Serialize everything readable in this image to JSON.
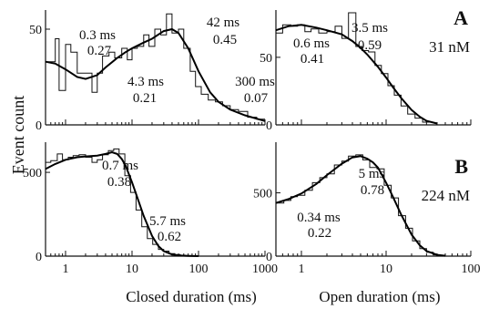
{
  "ylabel": "Event count",
  "chart_data": [
    {
      "type": "histogram",
      "panel_row": "A",
      "panel_label": "A",
      "concentration": "31 nM",
      "xscale": "log",
      "xlim": [
        0.5,
        1000
      ],
      "ylim": [
        0,
        60
      ],
      "x_ticks": [
        1,
        10,
        100,
        1000
      ],
      "x_tick_labels": [],
      "y_ticks": [
        0,
        50
      ],
      "y_tick_labels": [
        "0",
        "50"
      ],
      "xlabel": "",
      "histogram": {
        "x": [
          0.5,
          0.6,
          0.7,
          0.8,
          1.0,
          1.2,
          1.5,
          2.0,
          2.5,
          3.0,
          3.6,
          4.5,
          5.5,
          7.0,
          8.5,
          10,
          12,
          15,
          18,
          22,
          27,
          33,
          40,
          50,
          60,
          75,
          90,
          110,
          140,
          180,
          230,
          300,
          400,
          550,
          750,
          1000
        ],
        "y": [
          33,
          33,
          45,
          18,
          42,
          38,
          27,
          27,
          17,
          27,
          36,
          38,
          35,
          40,
          34,
          40,
          41,
          47,
          41,
          50,
          47,
          58,
          48,
          50,
          40,
          28,
          20,
          16,
          13,
          12,
          10,
          8,
          7,
          4,
          3
        ]
      },
      "fit": {
        "x": [
          0.5,
          0.7,
          1,
          1.5,
          2,
          3,
          4,
          6,
          8,
          10,
          15,
          20,
          30,
          40,
          50,
          70,
          100,
          150,
          200,
          300,
          500,
          1000
        ],
        "y": [
          33,
          32,
          29,
          25,
          24,
          26,
          30,
          35,
          38,
          40,
          43,
          45,
          49,
          50,
          48,
          40,
          28,
          17,
          12,
          8,
          5,
          2
        ]
      },
      "components": [
        {
          "tau": "0.3 ms",
          "weight": "0.27"
        },
        {
          "tau": "4.3 ms",
          "weight": "0.21"
        },
        {
          "tau": "42 ms",
          "weight": "0.45"
        },
        {
          "tau": "300 ms",
          "weight": "0.07"
        }
      ]
    },
    {
      "type": "histogram",
      "panel_row": "A",
      "panel_label": "",
      "concentration": "",
      "xscale": "log",
      "xlim": [
        0.5,
        100
      ],
      "ylim": [
        0,
        85
      ],
      "x_ticks": [
        1,
        10,
        100
      ],
      "x_tick_labels": [],
      "y_ticks": [
        0,
        50
      ],
      "y_tick_labels": [
        "0",
        "50"
      ],
      "xlabel": "",
      "histogram": {
        "x": [
          0.5,
          0.6,
          0.75,
          0.9,
          1.1,
          1.3,
          1.6,
          2.0,
          2.5,
          3.0,
          3.6,
          4.4,
          5.2,
          6.2,
          7.4,
          8.8,
          10.5,
          12.5,
          15,
          18,
          22,
          27,
          33
        ],
        "y": [
          68,
          74,
          73,
          74,
          69,
          71,
          68,
          69,
          73,
          64,
          83,
          58,
          55,
          54,
          44,
          38,
          29,
          22,
          14,
          8,
          5,
          2
        ]
      },
      "fit": {
        "x": [
          0.5,
          0.7,
          1,
          1.5,
          2,
          3,
          4,
          5,
          6,
          8,
          10,
          12,
          15,
          20,
          25,
          30,
          40
        ],
        "y": [
          70,
          73,
          74,
          72,
          70,
          67,
          62,
          57,
          52,
          43,
          35,
          28,
          20,
          11,
          6,
          3,
          1
        ]
      },
      "components": [
        {
          "tau": "0.6 ms",
          "weight": "0.41"
        },
        {
          "tau": "3.5 ms",
          "weight": "0.59"
        }
      ]
    },
    {
      "type": "histogram",
      "panel_row": "B",
      "panel_label": "",
      "concentration": "",
      "xscale": "log",
      "xlim": [
        0.5,
        1000
      ],
      "ylim": [
        0,
        680
      ],
      "x_ticks": [
        1,
        10,
        100,
        1000
      ],
      "x_tick_labels": [
        "1",
        "10",
        "100",
        "1000"
      ],
      "y_ticks": [
        0,
        500
      ],
      "y_tick_labels": [
        "0",
        "500"
      ],
      "xlabel": "Closed duration (ms)",
      "histogram": {
        "x": [
          0.5,
          0.6,
          0.75,
          0.9,
          1.1,
          1.3,
          1.6,
          2.0,
          2.5,
          3.0,
          3.6,
          4.4,
          5.3,
          6.4,
          7.8,
          9.5,
          11.5,
          14,
          17,
          20.5,
          25,
          30,
          36,
          44,
          53,
          64,
          78
        ],
        "y": [
          560,
          570,
          610,
          575,
          590,
          600,
          605,
          590,
          560,
          575,
          605,
          630,
          640,
          610,
          480,
          380,
          275,
          175,
          105,
          70,
          40,
          30,
          15,
          10,
          5,
          3
        ]
      },
      "fit": {
        "x": [
          0.5,
          0.7,
          1,
          1.5,
          2,
          3,
          4,
          5,
          6,
          7,
          8,
          10,
          12,
          15,
          20,
          25,
          30,
          40,
          50,
          70,
          100
        ],
        "y": [
          520,
          550,
          575,
          590,
          595,
          600,
          610,
          620,
          610,
          580,
          540,
          440,
          350,
          240,
          120,
          60,
          30,
          10,
          4,
          1,
          0
        ]
      },
      "components": [
        {
          "tau": "0.7 ms",
          "weight": "0.38"
        },
        {
          "tau": "5.7 ms",
          "weight": "0.62"
        }
      ]
    },
    {
      "type": "histogram",
      "panel_row": "B",
      "panel_label": "B",
      "concentration": "224 nM",
      "xscale": "log",
      "xlim": [
        0.5,
        100
      ],
      "ylim": [
        0,
        900
      ],
      "x_ticks": [
        1,
        10,
        100
      ],
      "x_tick_labels": [
        "1",
        "10",
        "100"
      ],
      "y_ticks": [
        0,
        500
      ],
      "y_tick_labels": [
        "0",
        "500"
      ],
      "xlabel": "Open duration (ms)",
      "histogram": {
        "x": [
          0.5,
          0.62,
          0.75,
          0.9,
          1.1,
          1.35,
          1.65,
          2.0,
          2.45,
          3.0,
          3.6,
          4.4,
          5.3,
          6.4,
          7.8,
          9.5,
          11.5,
          14,
          17,
          20.5,
          25,
          30,
          36,
          44
        ],
        "y": [
          420,
          440,
          470,
          480,
          520,
          580,
          620,
          650,
          720,
          750,
          790,
          800,
          760,
          700,
          690,
          560,
          460,
          320,
          220,
          120,
          60,
          30,
          10
        ]
      },
      "fit": {
        "x": [
          0.5,
          0.7,
          1,
          1.5,
          2,
          3,
          4,
          5,
          6,
          7,
          8,
          10,
          12,
          15,
          20,
          25,
          30,
          40,
          50
        ],
        "y": [
          420,
          450,
          495,
          570,
          640,
          730,
          780,
          790,
          770,
          740,
          700,
          580,
          470,
          330,
          170,
          85,
          40,
          10,
          3
        ]
      },
      "components": [
        {
          "tau": "0.34 ms",
          "weight": "0.22"
        },
        {
          "tau": "5 ms",
          "weight": "0.78"
        }
      ]
    }
  ],
  "annotations": [
    {
      "panel": 0,
      "tau": "0.3 ms",
      "weight": "0.27"
    },
    {
      "panel": 0,
      "tau": "4.3 ms",
      "weight": "0.21"
    },
    {
      "panel": 0,
      "tau": "42 ms",
      "weight": "0.45"
    },
    {
      "panel": 0,
      "tau": "300 ms",
      "weight": "0.07"
    },
    {
      "panel": 1,
      "tau": "0.6 ms",
      "weight": "0.41"
    },
    {
      "panel": 1,
      "tau": "3.5 ms",
      "weight": "0.59"
    },
    {
      "panel": 2,
      "tau": "0.7 ms",
      "weight": "0.38"
    },
    {
      "panel": 2,
      "tau": "5.7 ms",
      "weight": "0.62"
    },
    {
      "panel": 3,
      "tau": "0.34 ms",
      "weight": "0.22"
    },
    {
      "panel": 3,
      "tau": "5 ms",
      "weight": "0.78"
    }
  ]
}
